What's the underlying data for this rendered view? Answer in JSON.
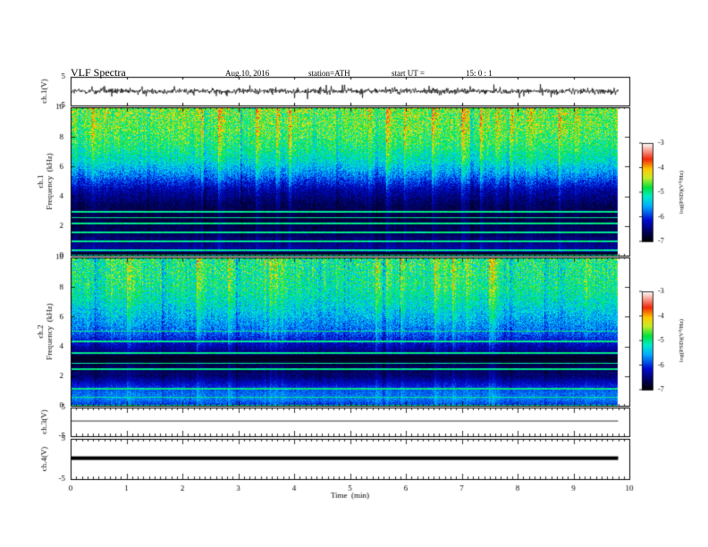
{
  "header": {
    "title": "VLF  Spectra",
    "date": "Aug.10, 2016",
    "station": "station=ATH",
    "start_label": "start  UT  =",
    "start_time": "15: 0  : 1"
  },
  "chart_data": {
    "type": "heatmap",
    "x_axis": {
      "label": "Time  (min)",
      "range": [
        0,
        10
      ],
      "ticks": [
        "0",
        "1",
        "2",
        "3",
        "4",
        "5",
        "6",
        "7",
        "8",
        "9",
        "10"
      ],
      "data_end": 9.8
    },
    "panels": [
      {
        "kind": "waveform",
        "ylabel": "ch.1(V)",
        "ylim": [
          -5,
          5
        ],
        "tick_labels": [
          "5",
          "-5"
        ],
        "mean": 0,
        "noise": 0.8
      },
      {
        "kind": "spectrogram",
        "ylabel_top": "ch.1",
        "ylabel": "Frequency  (kHz)",
        "ylim": [
          0,
          10
        ],
        "yticks": [
          "0",
          "2",
          "4",
          "6",
          "8",
          "10"
        ],
        "colorbar": {
          "label": "log(PSD)(V²/Hz)",
          "ticks": [
            "-3",
            "-4",
            "-5",
            "-6",
            "-7"
          ],
          "range": [
            -7,
            -3
          ]
        },
        "profile": [
          [
            0,
            -5.9
          ],
          [
            0.35,
            -6.3
          ],
          [
            1.5,
            -6.6
          ],
          [
            2.5,
            -6.7
          ],
          [
            3.5,
            -6.6
          ],
          [
            4.5,
            -6.3
          ],
          [
            5.5,
            -5.7
          ],
          [
            6.5,
            -5.2
          ],
          [
            7.5,
            -4.9
          ],
          [
            8.5,
            -4.7
          ],
          [
            10,
            -4.6
          ]
        ],
        "bright_lines_khz": [
          0.4,
          1.0,
          1.6,
          2.2,
          2.6,
          3.0
        ],
        "dark_band_khz": [
          0.1,
          0.3
        ]
      },
      {
        "kind": "spectrogram",
        "ylabel_top": "ch.2",
        "ylabel": "Frequency  (kHz)",
        "ylim": [
          0,
          10
        ],
        "yticks": [
          "0",
          "2",
          "4",
          "6",
          "8",
          "10"
        ],
        "colorbar": {
          "label": "log(PSD)(V²/Hz)",
          "ticks": [
            "-3",
            "-4",
            "-5",
            "-6",
            "-7"
          ],
          "range": [
            -7,
            -3
          ]
        },
        "profile": [
          [
            0,
            -6.0
          ],
          [
            0.5,
            -5.7
          ],
          [
            1.0,
            -5.8
          ],
          [
            2.0,
            -6.5
          ],
          [
            3.0,
            -6.7
          ],
          [
            4.0,
            -6.3
          ],
          [
            5.0,
            -5.8
          ],
          [
            6.0,
            -5.5
          ],
          [
            7.0,
            -5.2
          ],
          [
            8.0,
            -5.0
          ],
          [
            10,
            -4.9
          ]
        ],
        "bright_lines_khz": [
          0.6,
          1.2,
          2.5,
          2.9,
          3.6,
          4.4,
          5.1
        ],
        "dark_band_khz": [
          3.0,
          3.5
        ]
      },
      {
        "kind": "flat",
        "ylabel": "ch.3(V)",
        "ylim": [
          -5,
          5
        ],
        "tick_labels": [
          "5",
          "-5"
        ],
        "mean": 0.3,
        "thickness": 0.8
      },
      {
        "kind": "flat",
        "ylabel": "ch.4(V)",
        "ylim": [
          -5,
          5
        ],
        "tick_labels": [
          "5",
          "-5"
        ],
        "mean": 0.2,
        "thickness": 4
      }
    ]
  }
}
